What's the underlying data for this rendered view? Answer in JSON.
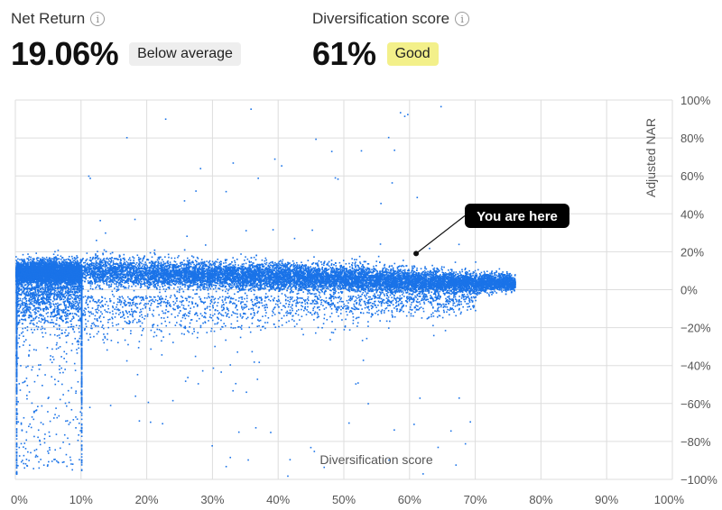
{
  "metrics": {
    "net_return": {
      "label": "Net Return",
      "info_icon": "info-icon",
      "value": "19.06%",
      "badge": "Below average",
      "badge_color": "#eeeeee"
    },
    "diversification": {
      "label": "Diversification score",
      "info_icon": "info-icon",
      "value": "61%",
      "badge": "Good",
      "badge_color": "#f3f08a"
    }
  },
  "chart_data": {
    "type": "scatter",
    "xlabel": "Diversification score",
    "ylabel": "Adjusted NAR",
    "xlim": [
      0,
      100
    ],
    "ylim": [
      -100,
      100
    ],
    "x_ticks": [
      "0%",
      "10%",
      "20%",
      "30%",
      "40%",
      "50%",
      "60%",
      "70%",
      "80%",
      "90%",
      "100%"
    ],
    "y_ticks": [
      "100%",
      "80%",
      "60%",
      "40%",
      "20%",
      "0%",
      "−20%",
      "−40%",
      "−60%",
      "−80%",
      "−100%"
    ],
    "grid": true,
    "point_color": "#1a73e8",
    "highlight": {
      "label": "You are here",
      "x": 61,
      "y": 19.06
    },
    "density_profile": [
      {
        "x": 0,
        "center": 10,
        "spread": 4
      },
      {
        "x": 10,
        "center": 10,
        "spread": 4
      },
      {
        "x": 30,
        "center": 8,
        "spread": 3.5
      },
      {
        "x": 50,
        "center": 6,
        "spread": 3.5
      },
      {
        "x": 65,
        "center": 4,
        "spread": 3
      },
      {
        "x": 76,
        "center": 4,
        "spread": 2
      }
    ]
  }
}
